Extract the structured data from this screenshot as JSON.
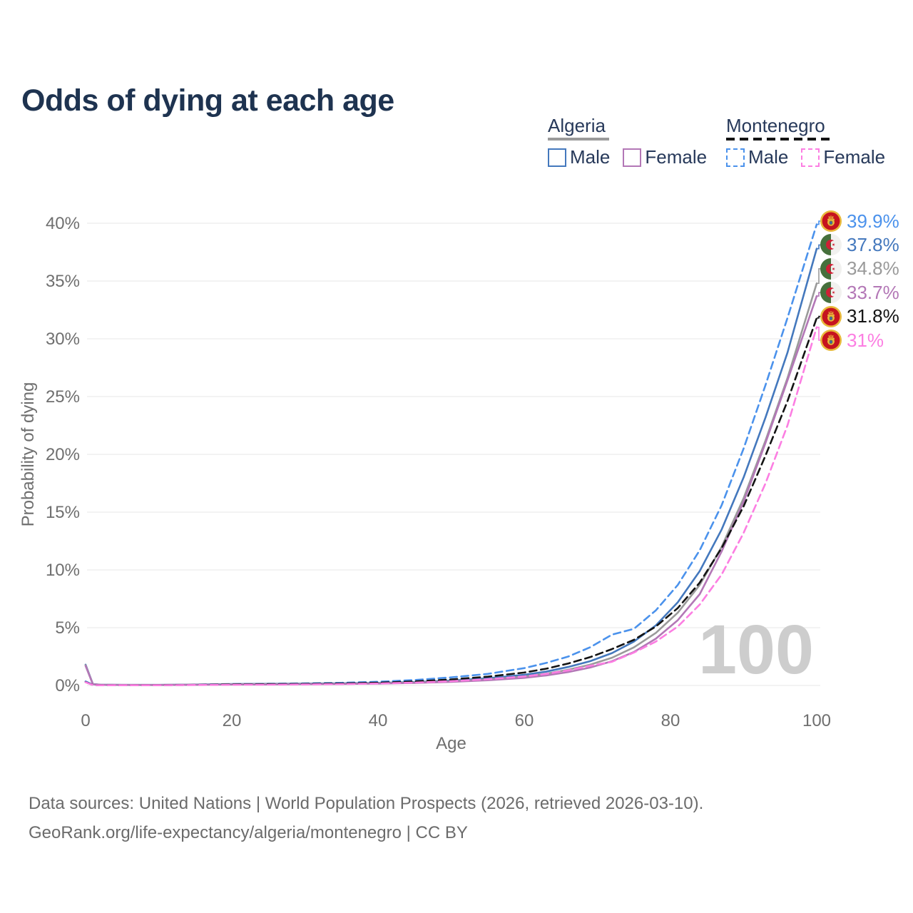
{
  "title": "Odds of dying at each age",
  "legend": {
    "groups": [
      {
        "label": "Algeria",
        "items": [
          "Male",
          "Female"
        ]
      },
      {
        "label": "Montenegro",
        "items": [
          "Male",
          "Female"
        ]
      }
    ]
  },
  "footer": {
    "line1": "Data sources: United Nations | World Population Prospects (2026, retrieved 2026-03-10).",
    "line2": "GeoRank.org/life-expectancy/algeria/montenegro | CC BY"
  },
  "colors": {
    "title_text": "#1e3350",
    "legend_text": "#27395a",
    "axis_text": "#6f6f6f",
    "gridline": "#ececec",
    "watermark": "#cdcdcd",
    "algeria_male": "#4478bd",
    "algeria_female": "#b377b6",
    "algeria_total": "#9a9a9a",
    "montenegro_male": "#4b92ec",
    "montenegro_female": "#fc7ee2",
    "montenegro_total": "#141414"
  },
  "chart_data": {
    "type": "line",
    "title": "Odds of dying at each age",
    "xlabel": "Age",
    "ylabel": "Probability of dying",
    "xlim": [
      0,
      100
    ],
    "ylim": [
      0,
      40
    ],
    "grid": "horizontal-only",
    "watermark": "100",
    "x_ticks": [
      {
        "v": 0,
        "label": "0"
      },
      {
        "v": 20,
        "label": "20"
      },
      {
        "v": 40,
        "label": "40"
      },
      {
        "v": 60,
        "label": "60"
      },
      {
        "v": 80,
        "label": "80"
      },
      {
        "v": 100,
        "label": "100"
      }
    ],
    "y_ticks": [
      {
        "v": 0,
        "label": "0%"
      },
      {
        "v": 5,
        "label": "5%"
      },
      {
        "v": 10,
        "label": "10%"
      },
      {
        "v": 15,
        "label": "15%"
      },
      {
        "v": 20,
        "label": "20%"
      },
      {
        "v": 25,
        "label": "25%"
      },
      {
        "v": 30,
        "label": "30%"
      },
      {
        "v": 35,
        "label": "35%"
      },
      {
        "v": 40,
        "label": "40%"
      }
    ],
    "ages": [
      0,
      1,
      2,
      5,
      10,
      15,
      20,
      25,
      30,
      35,
      40,
      45,
      50,
      55,
      60,
      63,
      66,
      69,
      72,
      75,
      78,
      81,
      84,
      87,
      90,
      93,
      96,
      100
    ],
    "series": [
      {
        "name": "Montenegro male",
        "country": "montenegro",
        "color": "#4b92ec",
        "dash": true,
        "end_label": "39.9%",
        "values": [
          0.35,
          0.05,
          0.03,
          0.02,
          0.03,
          0.07,
          0.12,
          0.15,
          0.18,
          0.23,
          0.32,
          0.47,
          0.7,
          1.0,
          1.5,
          1.95,
          2.5,
          3.3,
          4.4,
          4.9,
          6.5,
          8.7,
          11.7,
          15.6,
          20.5,
          26.0,
          31.8,
          39.9
        ]
      },
      {
        "name": "Algeria male",
        "country": "algeria",
        "color": "#4478bd",
        "dash": false,
        "end_label": "37.8%",
        "values": [
          1.8,
          0.12,
          0.07,
          0.05,
          0.05,
          0.08,
          0.12,
          0.14,
          0.16,
          0.18,
          0.22,
          0.3,
          0.42,
          0.62,
          0.92,
          1.2,
          1.6,
          2.1,
          2.8,
          3.8,
          5.2,
          7.2,
          9.9,
          13.5,
          18.0,
          23.2,
          28.8,
          37.8
        ]
      },
      {
        "name": "Algeria both sexes",
        "country": "algeria",
        "color": "#9a9a9a",
        "dash": false,
        "end_label": "34.8%",
        "values": [
          1.75,
          0.11,
          0.06,
          0.05,
          0.04,
          0.07,
          0.1,
          0.12,
          0.13,
          0.15,
          0.19,
          0.26,
          0.36,
          0.53,
          0.78,
          1.02,
          1.36,
          1.8,
          2.4,
          3.3,
          4.55,
          6.3,
          8.7,
          12.0,
          16.2,
          21.2,
          26.6,
          34.8
        ]
      },
      {
        "name": "Algeria female",
        "country": "algeria",
        "color": "#b377b6",
        "dash": false,
        "end_label": "33.7%",
        "values": [
          1.7,
          0.1,
          0.06,
          0.04,
          0.04,
          0.06,
          0.08,
          0.09,
          0.11,
          0.13,
          0.16,
          0.22,
          0.31,
          0.45,
          0.66,
          0.87,
          1.16,
          1.55,
          2.1,
          2.9,
          4.05,
          5.65,
          7.9,
          11.6,
          15.9,
          21.0,
          26.4,
          33.7
        ]
      },
      {
        "name": "Montenegro both sexes",
        "country": "montenegro",
        "color": "#141414",
        "dash": true,
        "end_label": "31.8%",
        "values": [
          0.3,
          0.04,
          0.03,
          0.02,
          0.03,
          0.05,
          0.09,
          0.11,
          0.13,
          0.17,
          0.24,
          0.35,
          0.52,
          0.76,
          1.12,
          1.45,
          1.9,
          2.45,
          3.15,
          3.95,
          5.1,
          6.7,
          8.9,
          11.9,
          15.5,
          19.9,
          24.6,
          31.8
        ]
      },
      {
        "name": "Montenegro female",
        "country": "montenegro",
        "color": "#fc7ee2",
        "dash": true,
        "end_label": "31%",
        "values": [
          0.28,
          0.03,
          0.02,
          0.02,
          0.02,
          0.04,
          0.06,
          0.07,
          0.09,
          0.12,
          0.17,
          0.25,
          0.37,
          0.54,
          0.78,
          1.0,
          1.3,
          1.7,
          2.05,
          2.85,
          3.8,
          5.1,
          7.0,
          9.6,
          13.2,
          17.5,
          22.5,
          31.0
        ]
      }
    ]
  }
}
